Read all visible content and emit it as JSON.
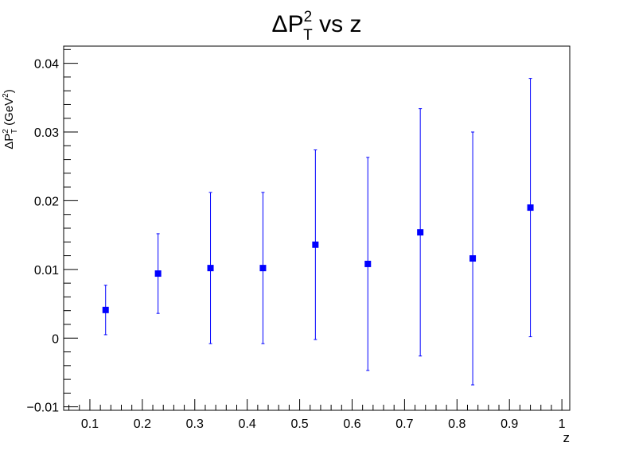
{
  "chart_data": {
    "type": "scatter",
    "title": {
      "base": "ΔP",
      "sub": "T",
      "sup": "2",
      "rest": " vs z"
    },
    "xlabel": "z",
    "ylabel": {
      "base": "ΔP",
      "sub": "T",
      "sup": "2",
      "unit": " (GeV",
      "unit_sup": "2",
      "close": ")"
    },
    "xlim": [
      0.05,
      1.015
    ],
    "ylim": [
      -0.0105,
      0.0425
    ],
    "x_ticks": [
      0.1,
      0.2,
      0.3,
      0.4,
      0.5,
      0.6,
      0.7,
      0.8,
      0.9,
      1.0
    ],
    "x_tick_labels": [
      "0.1",
      "0.2",
      "0.3",
      "0.4",
      "0.5",
      "0.6",
      "0.7",
      "0.8",
      "0.9",
      "1"
    ],
    "y_ticks": [
      -0.01,
      0,
      0.01,
      0.02,
      0.03,
      0.04
    ],
    "y_tick_labels": [
      "−0.01",
      "0",
      "0.01",
      "0.02",
      "0.03",
      "0.04"
    ],
    "grid": false,
    "marker_color": "#0000ff",
    "series": [
      {
        "x": [
          0.13,
          0.23,
          0.33,
          0.43,
          0.53,
          0.63,
          0.73,
          0.83,
          0.94
        ],
        "y": [
          0.0041,
          0.0094,
          0.0102,
          0.0102,
          0.0136,
          0.0108,
          0.0154,
          0.0116,
          0.019
        ],
        "y_err": [
          0.0036,
          0.0058,
          0.011,
          0.011,
          0.0138,
          0.0155,
          0.018,
          0.0184,
          0.0188
        ]
      }
    ]
  }
}
